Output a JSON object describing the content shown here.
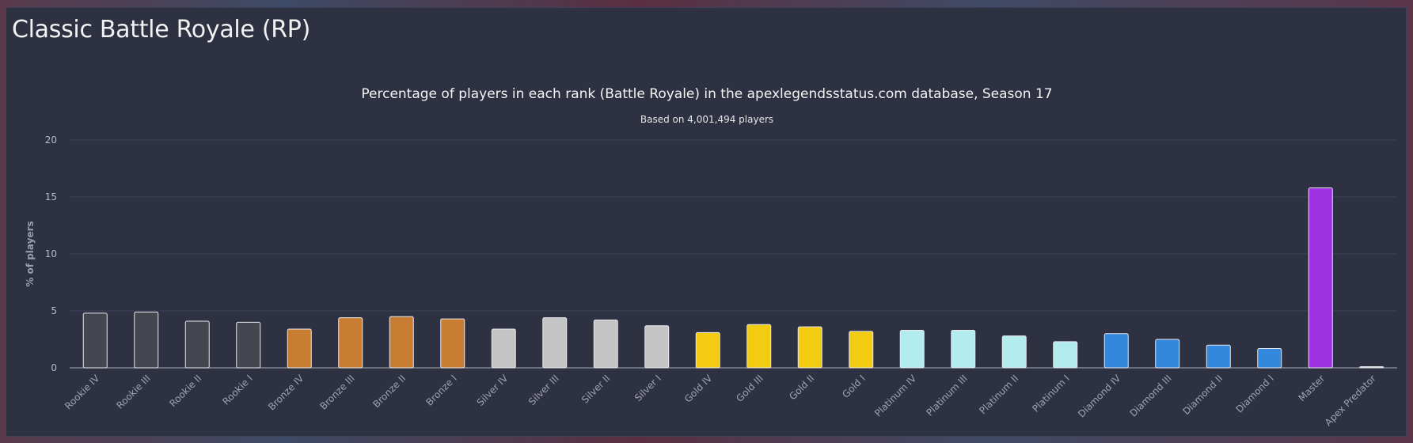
{
  "panel": {
    "title": "Classic Battle Royale (RP)"
  },
  "chart_data": {
    "type": "bar",
    "title": "Percentage of players in each rank (Battle Royale) in the apexlegendsstatus.com database, Season 17",
    "subtitle": "Based on 4,001,494 players",
    "xlabel": "",
    "ylabel": "% of players",
    "ylim": [
      0,
      20
    ],
    "yticks": [
      0,
      5,
      10,
      15,
      20
    ],
    "grid": true,
    "legend": "none",
    "categories": [
      "Rookie IV",
      "Rookie III",
      "Rookie II",
      "Rookie I",
      "Bronze IV",
      "Bronze III",
      "Bronze II",
      "Bronze I",
      "Silver IV",
      "Silver III",
      "Silver II",
      "Silver I",
      "Gold IV",
      "Gold III",
      "Gold II",
      "Gold I",
      "Platinum IV",
      "Platinum III",
      "Platinum II",
      "Platinum I",
      "Diamond IV",
      "Diamond III",
      "Diamond II",
      "Diamond I",
      "Master",
      "Apex Predator"
    ],
    "values": [
      4.8,
      4.9,
      4.1,
      4.0,
      3.4,
      4.4,
      4.5,
      4.3,
      3.4,
      4.4,
      4.2,
      3.7,
      3.1,
      3.8,
      3.6,
      3.2,
      3.3,
      3.3,
      2.8,
      2.3,
      3.0,
      2.5,
      2.0,
      1.7,
      15.8,
      0.1
    ],
    "colors": [
      "#454650",
      "#454650",
      "#454650",
      "#454650",
      "#c87d33",
      "#c87d33",
      "#c87d33",
      "#c87d33",
      "#c4c4c4",
      "#c4c4c4",
      "#c4c4c4",
      "#c4c4c4",
      "#f3cb10",
      "#f3cb10",
      "#f3cb10",
      "#f3cb10",
      "#b3ecef",
      "#b3ecef",
      "#b3ecef",
      "#b3ecef",
      "#3387dc",
      "#3387dc",
      "#3387dc",
      "#3387dc",
      "#9d30e0",
      "#d8d8d8"
    ]
  }
}
